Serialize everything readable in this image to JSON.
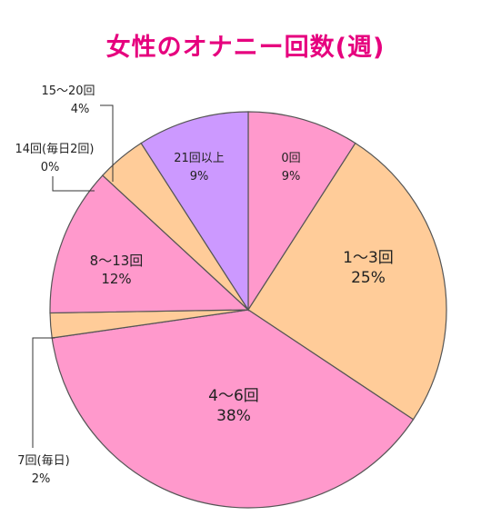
{
  "chart_data": {
    "type": "pie",
    "title": "女性のオナニー回数(週)",
    "slices": [
      {
        "label": "0回",
        "value": 9,
        "value_label": "9%",
        "color": "#ff99cc"
      },
      {
        "label": "1〜3回",
        "value": 25,
        "value_label": "25%",
        "color": "#ffcc99"
      },
      {
        "label": "4〜6回",
        "value": 38,
        "value_label": "38%",
        "color": "#ff99cc"
      },
      {
        "label": "7回(毎日)",
        "value": 2,
        "value_label": "2%",
        "color": "#ffcc99"
      },
      {
        "label": "8〜13回",
        "value": 12,
        "value_label": "12%",
        "color": "#ff99cc"
      },
      {
        "label": "14回(毎日2回)",
        "value": 0,
        "value_label": "0%",
        "color": "#ffcc99"
      },
      {
        "label": "15〜20回",
        "value": 4,
        "value_label": "4%",
        "color": "#ffcc99"
      },
      {
        "label": "21回以上",
        "value": 9,
        "value_label": "9%",
        "color": "#cc99ff"
      }
    ],
    "start": "12 o'clock",
    "direction": "clockwise"
  }
}
